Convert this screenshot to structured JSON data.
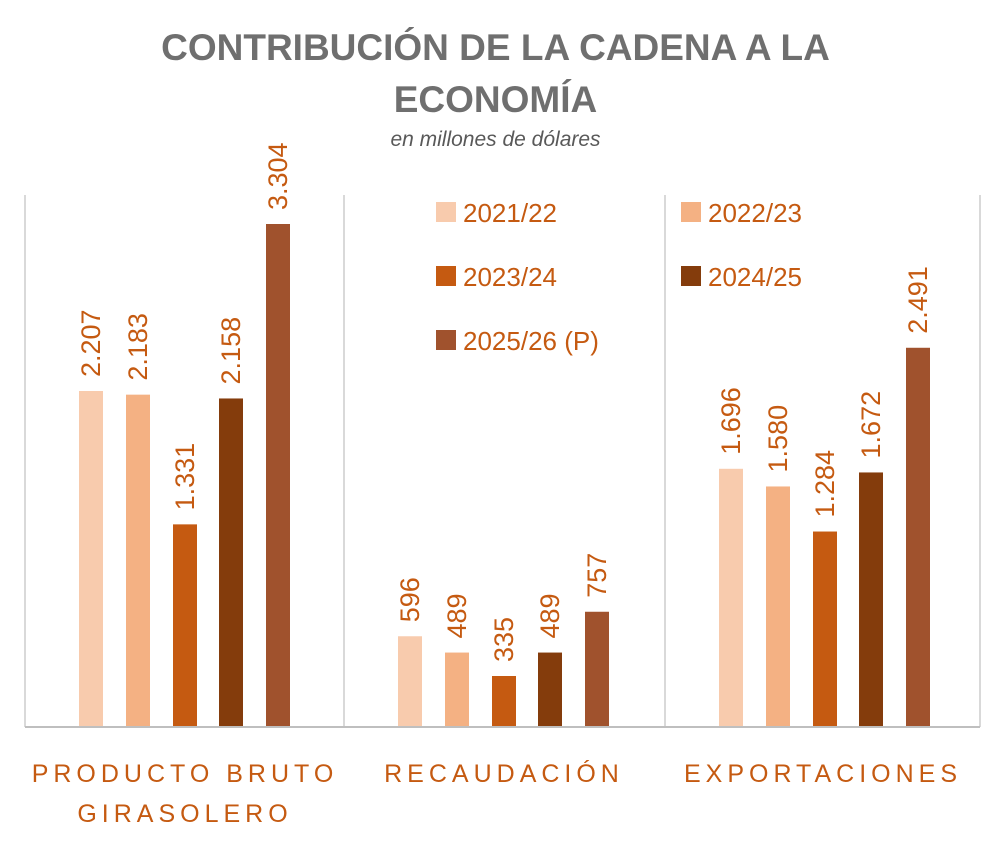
{
  "chart_data": {
    "type": "bar",
    "title_line1": "CONTRIBUCIÓN DE LA CADENA A LA",
    "title_line2": "ECONOMÍA",
    "subtitle": "en millones de dólares",
    "categories": [
      [
        "PRODUCTO BRUTO",
        "GIRASOLERO"
      ],
      [
        "RECAUDACIÓN"
      ],
      [
        "EXPORTACIONES"
      ]
    ],
    "series": [
      {
        "name": "2021/22",
        "color": "#f8cbad",
        "values": [
          2207,
          596,
          1696
        ],
        "labels": [
          "2.207",
          "596",
          "1.696"
        ]
      },
      {
        "name": "2022/23",
        "color": "#f4b183",
        "values": [
          2183,
          489,
          1580
        ],
        "labels": [
          "2.183",
          "489",
          "1.580"
        ]
      },
      {
        "name": "2023/24",
        "color": "#c55a11",
        "values": [
          1331,
          335,
          1284
        ],
        "labels": [
          "1.331",
          "335",
          "1.284"
        ]
      },
      {
        "name": "2024/25",
        "color": "#843c0c",
        "values": [
          2158,
          489,
          1672
        ],
        "labels": [
          "2.158",
          "489",
          "1.672"
        ]
      },
      {
        "name": "2025/26 (P)",
        "color": "#a0522d",
        "values": [
          3304,
          757,
          2491
        ],
        "labels": [
          "3.304",
          "757",
          "2.491"
        ]
      }
    ],
    "ylim": [
      0,
      3304
    ],
    "legend_position": "top-right",
    "label_color": "#c55a11",
    "grid": false,
    "category_separators": true
  }
}
